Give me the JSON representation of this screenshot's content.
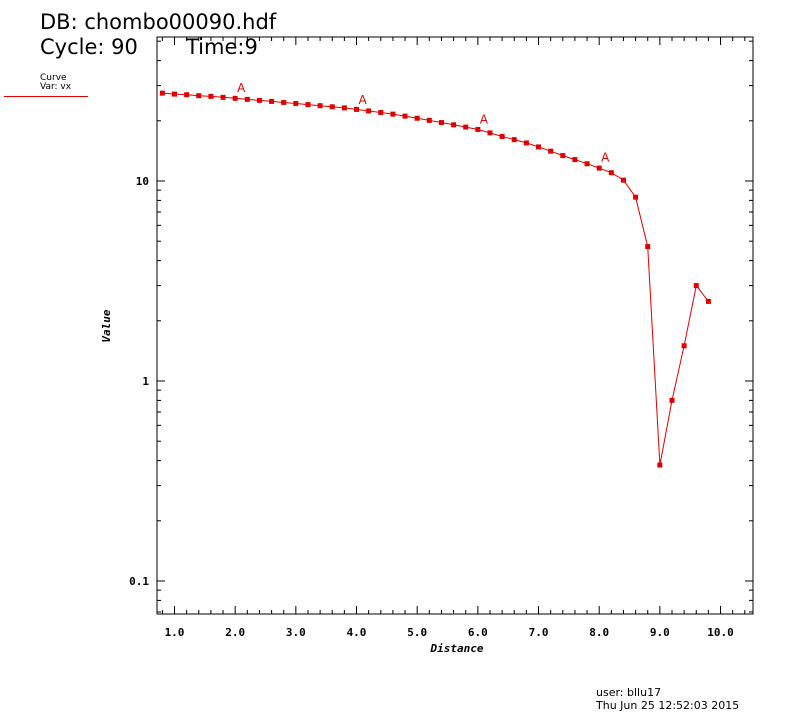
{
  "header": {
    "db_label": "DB: chombo00090.hdf",
    "cycle_label": "Cycle: 90",
    "time_label": "Time:9"
  },
  "legend": {
    "line1": "Curve",
    "line2": "Var: vx",
    "color": "#e00000"
  },
  "footer": {
    "user": "user: bllu17",
    "date": "Thu Jun 25 12:52:03 2015"
  },
  "chart_data": {
    "type": "line",
    "xlabel": "Distance",
    "ylabel": "Value",
    "yscale": "log",
    "xlim": [
      0.78,
      10.5
    ],
    "ylim": [
      0.07,
      70
    ],
    "x_ticks": [
      "1.0",
      "2.0",
      "3.0",
      "4.0",
      "5.0",
      "6.0",
      "7.0",
      "8.0",
      "9.0",
      "10.0"
    ],
    "x_tick_values": [
      1,
      2,
      3,
      4,
      5,
      6,
      7,
      8,
      9,
      10
    ],
    "y_ticks": [
      "0.1",
      "1",
      "10"
    ],
    "y_tick_values": [
      0.1,
      1,
      10
    ],
    "color": "#e00000",
    "series": [
      {
        "name": "",
        "x": [
          0.8,
          1.0,
          1.2,
          1.4,
          1.6,
          1.8,
          2.0,
          2.2,
          2.4,
          2.6,
          2.8,
          3.0,
          3.2,
          3.4,
          3.6,
          3.8,
          4.0,
          4.2,
          4.4,
          4.6,
          4.8,
          5.0,
          5.2,
          5.4,
          5.6,
          5.8,
          6.0,
          6.2,
          6.4,
          6.6,
          6.8,
          7.0,
          7.2,
          7.4,
          7.6,
          7.8,
          8.0,
          8.2,
          8.4,
          8.6,
          8.8,
          9.0,
          9.2,
          9.4,
          9.6,
          9.8
        ],
        "y": [
          27.5,
          27.2,
          27.0,
          26.7,
          26.5,
          26.2,
          25.9,
          25.6,
          25.3,
          25.0,
          24.7,
          24.4,
          24.1,
          23.8,
          23.5,
          23.2,
          22.8,
          22.4,
          22.0,
          21.6,
          21.1,
          20.6,
          20.1,
          19.6,
          19.1,
          18.6,
          18.1,
          17.4,
          16.7,
          16.1,
          15.5,
          14.8,
          14.1,
          13.4,
          12.8,
          12.2,
          11.6,
          11.0,
          10.1,
          8.3,
          4.7,
          0.38,
          0.8,
          1.5,
          3.0,
          2.5
        ]
      }
    ],
    "markers": [
      {
        "label": "A",
        "x": 2.1,
        "y": 27.8
      },
      {
        "label": "A",
        "x": 4.1,
        "y": 24.3
      },
      {
        "label": "A",
        "x": 6.1,
        "y": 19.4
      },
      {
        "label": "A",
        "x": 8.1,
        "y": 12.5
      }
    ]
  }
}
